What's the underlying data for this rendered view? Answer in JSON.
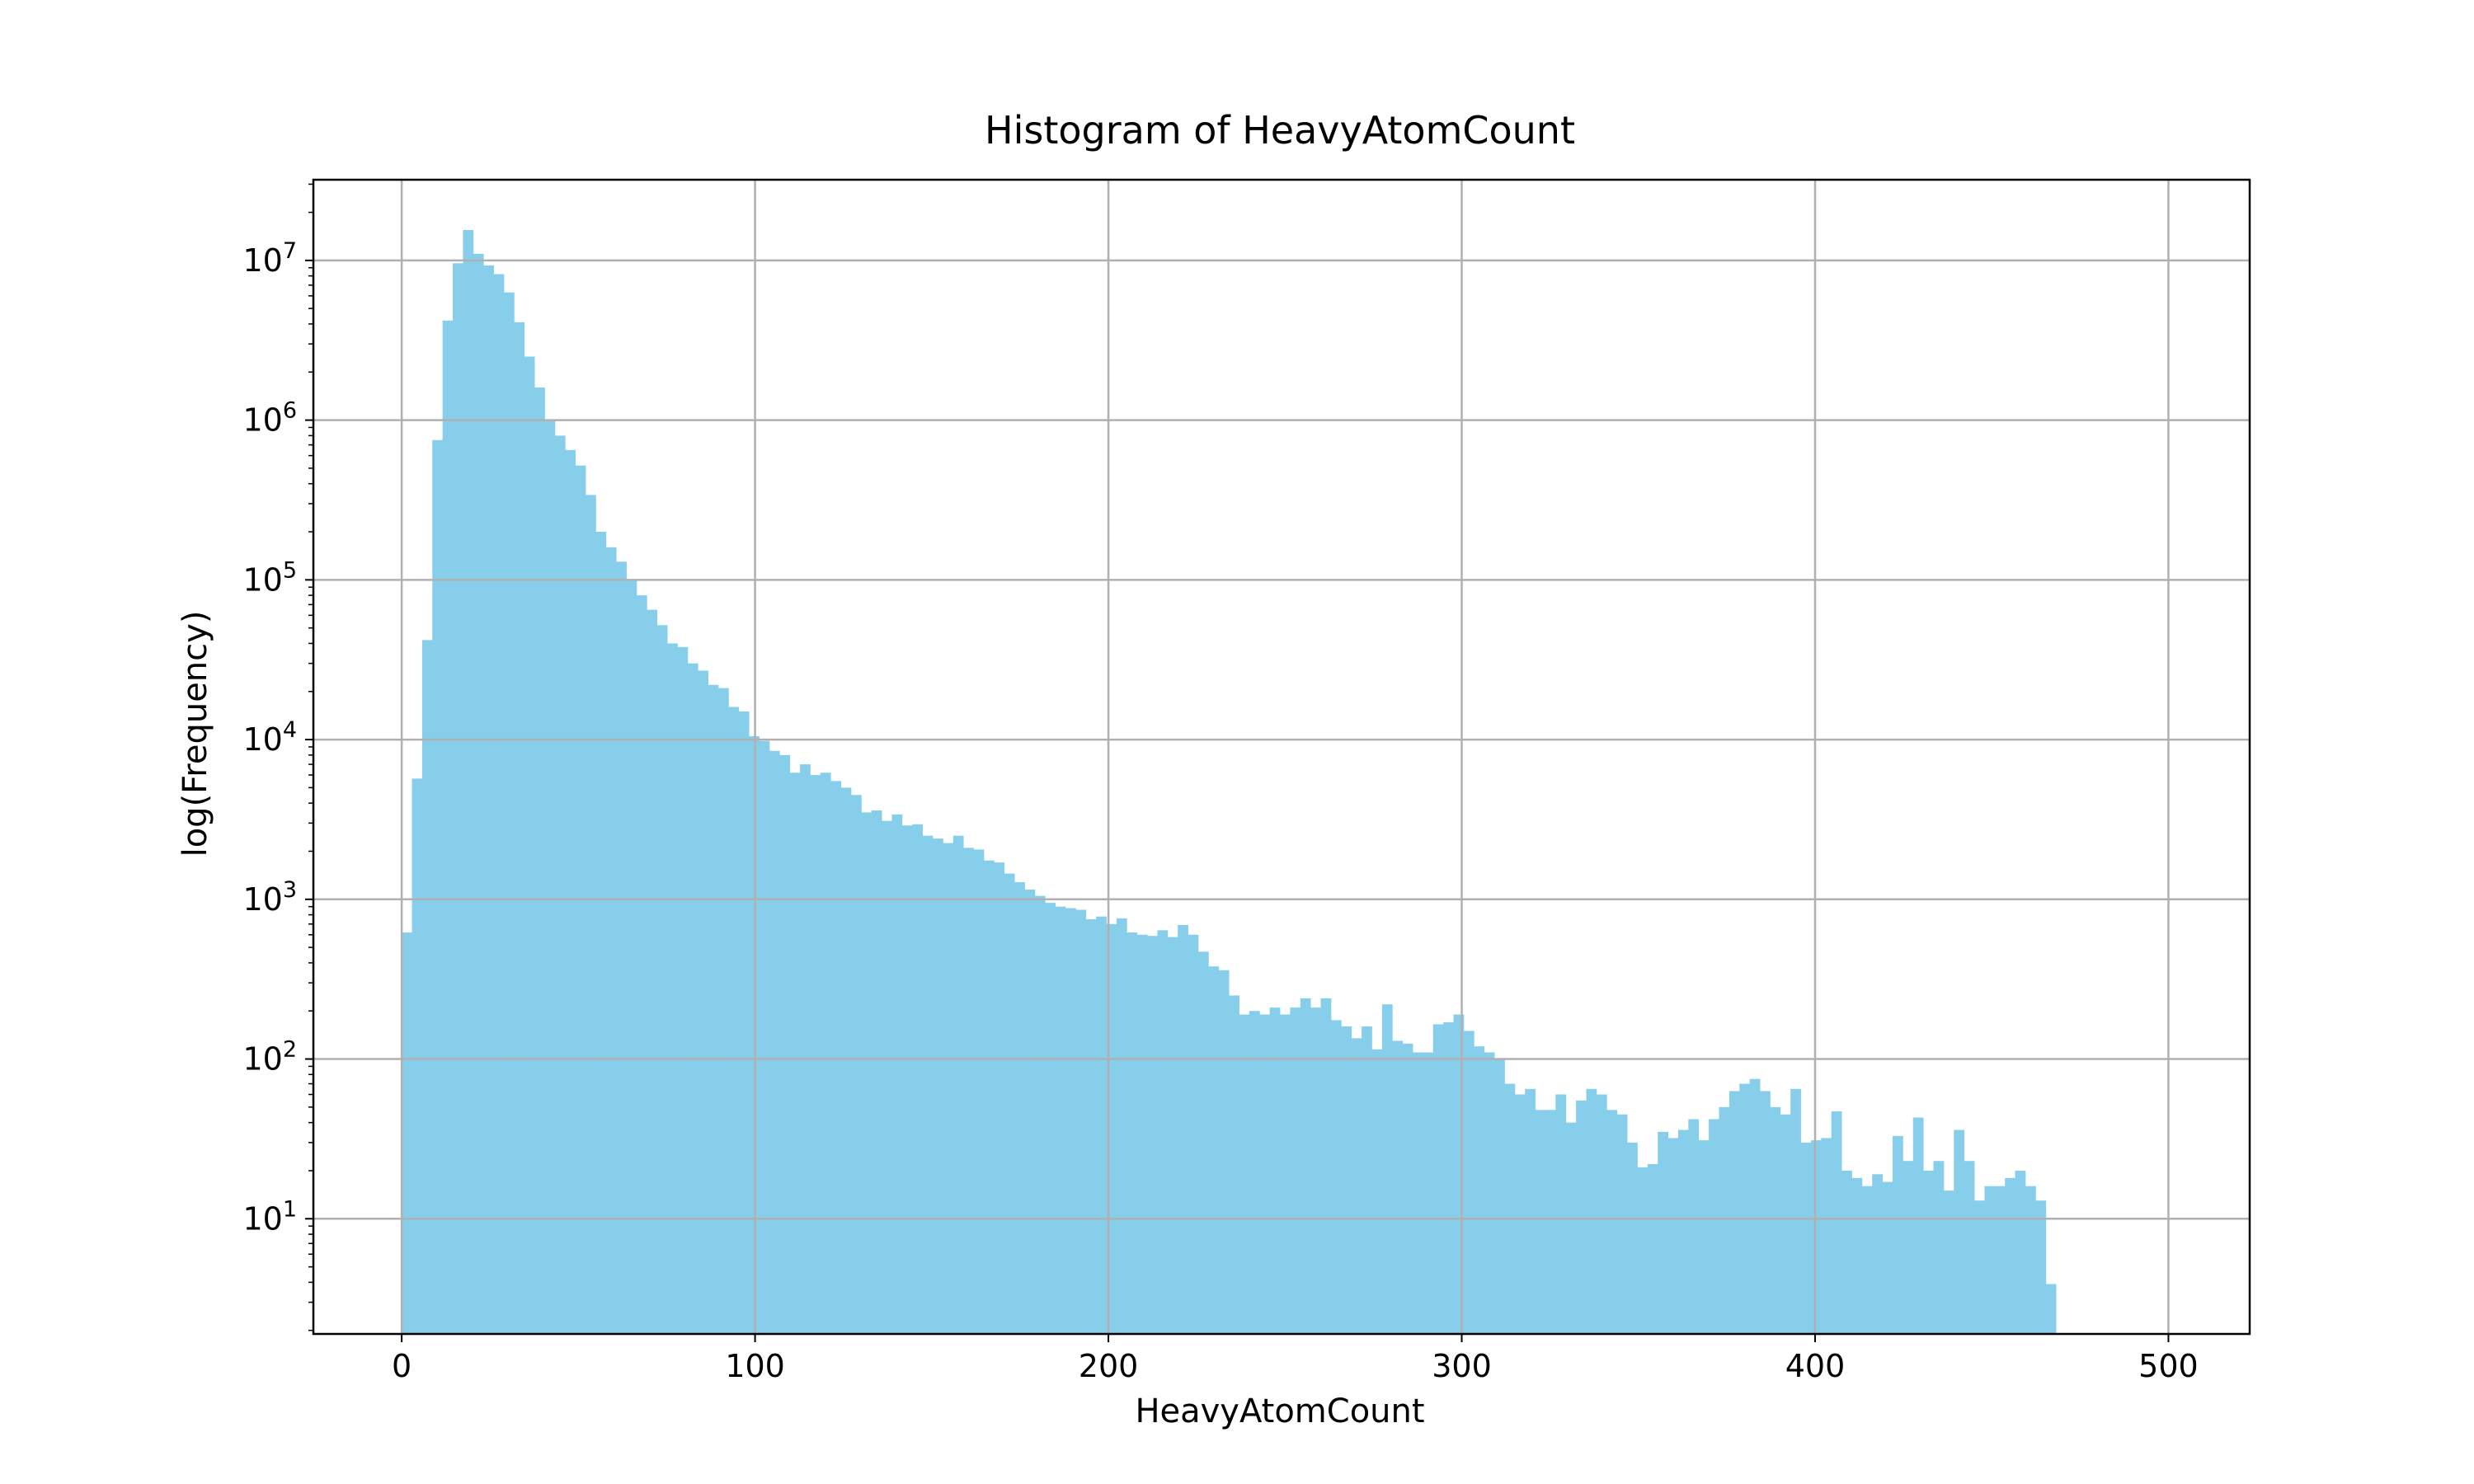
{
  "chart_data": {
    "type": "bar",
    "title": "Histogram of HeavyAtomCount",
    "xlabel": "HeavyAtomCount",
    "ylabel": "log(Frequency)",
    "xlim": [
      -25,
      523
    ],
    "ylim": [
      1.9,
      32000000
    ],
    "y_scale": "log",
    "grid": true,
    "bar_color": "#87CEEB",
    "grid_color": "#b0b0b0",
    "x_ticks": [
      0,
      100,
      200,
      300,
      400,
      500
    ],
    "x_tick_labels": [
      "0",
      "100",
      "200",
      "300",
      "400",
      "500"
    ],
    "y_ticks": [
      10,
      100,
      1000,
      10000,
      100000,
      1000000,
      10000000
    ],
    "y_tick_labels": [
      {
        "base": "10",
        "exp": "1"
      },
      {
        "base": "10",
        "exp": "2"
      },
      {
        "base": "10",
        "exp": "3"
      },
      {
        "base": "10",
        "exp": "4"
      },
      {
        "base": "10",
        "exp": "5"
      },
      {
        "base": "10",
        "exp": "6"
      },
      {
        "base": "10",
        "exp": "7"
      }
    ],
    "bin_width": 2.89,
    "x_start": 0,
    "values": [
      620,
      5700,
      42000,
      750000,
      4200000,
      9600000,
      15500000,
      11000000,
      9300000,
      8200000,
      6300000,
      4100000,
      2500000,
      1600000,
      1000000,
      800000,
      650000,
      520000,
      340000,
      200000,
      160000,
      130000,
      100000,
      80000,
      65000,
      52000,
      40000,
      38000,
      30000,
      27000,
      22000,
      21000,
      16000,
      15000,
      10500,
      9800,
      8500,
      8000,
      6200,
      7000,
      6000,
      6200,
      5500,
      5000,
      4500,
      3500,
      3600,
      3100,
      3400,
      2900,
      2950,
      2500,
      2400,
      2250,
      2500,
      2100,
      2050,
      1750,
      1700,
      1450,
      1280,
      1150,
      1050,
      950,
      900,
      880,
      860,
      750,
      780,
      700,
      760,
      620,
      600,
      590,
      640,
      580,
      690,
      600,
      470,
      380,
      360,
      250,
      190,
      200,
      190,
      210,
      190,
      210,
      240,
      210,
      240,
      175,
      160,
      135,
      160,
      115,
      220,
      130,
      125,
      110,
      110,
      165,
      170,
      190,
      150,
      120,
      110,
      100,
      70,
      60,
      65,
      48,
      48,
      60,
      40,
      55,
      65,
      60,
      48,
      45,
      30,
      21,
      22,
      35,
      32,
      36,
      42,
      31,
      42,
      50,
      63,
      70,
      75,
      63,
      50,
      45,
      65,
      30,
      31,
      32,
      47,
      20,
      18,
      16,
      19,
      17,
      33,
      23,
      43,
      20,
      23,
      15,
      36,
      23,
      13,
      16,
      16,
      18,
      20,
      16,
      13,
      3.9
    ]
  }
}
